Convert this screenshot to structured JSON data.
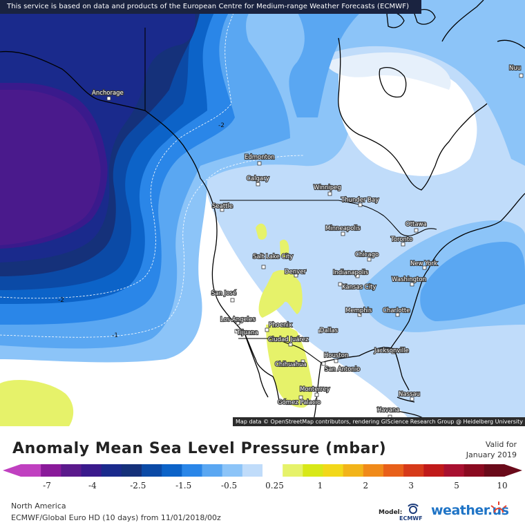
{
  "banner": "This service is based on data and products of the European Centre for Medium-range Weather Forecasts (ECMWF)",
  "attribution": "Map data © OpenStreetMap contributors, rendering GIScience Research Group @ Heidelberg University",
  "title": "Anomaly Mean Sea Level Pressure (mbar)",
  "valid_line1": "Valid for",
  "valid_line2": "January 2019",
  "region": "North America",
  "model_run": "ECMWF/Global Euro HD (10 days) from 11/01/2018/00z",
  "model_label": "Model:",
  "model_logo_text": "ECMWF",
  "brand": "weather.us",
  "colorbar": {
    "colors": [
      "#c040c0",
      "#8a1a9a",
      "#5b1a8c",
      "#3a1a8c",
      "#1a2a8c",
      "#15317a",
      "#0b4aa6",
      "#0c63c8",
      "#2a86e8",
      "#5aa7f2",
      "#8cc4f8",
      "#c0dcfa",
      "#ffffff",
      "#e6f26a",
      "#d8e818",
      "#f2d81a",
      "#f2b41a",
      "#f08a1a",
      "#e8601a",
      "#d63a1a",
      "#c01a1a",
      "#a81030",
      "#8a0a20",
      "#6a0a1a"
    ],
    "ticks": [
      "-7",
      "-4",
      "-2.5",
      "-1.5",
      "-0.5",
      "0.25",
      "1",
      "2",
      "3",
      "5",
      "10"
    ]
  },
  "isobar_labels": [
    "-2",
    "-2",
    "-1"
  ],
  "cities": [
    {
      "name": "Anchorage"
    },
    {
      "name": "Edmonton"
    },
    {
      "name": "Calgary"
    },
    {
      "name": "Winnipeg"
    },
    {
      "name": "Thunder Bay"
    },
    {
      "name": "Seattle"
    },
    {
      "name": "Minneapolis"
    },
    {
      "name": "Ottawa"
    },
    {
      "name": "Toronto"
    },
    {
      "name": "Salt Lake City"
    },
    {
      "name": "Denver"
    },
    {
      "name": "Chicago"
    },
    {
      "name": "New York"
    },
    {
      "name": "Indianapolis"
    },
    {
      "name": "Kansas City"
    },
    {
      "name": "Washington"
    },
    {
      "name": "San José"
    },
    {
      "name": "Memphis"
    },
    {
      "name": "Charlotte"
    },
    {
      "name": "Los Angeles"
    },
    {
      "name": "Phoenix"
    },
    {
      "name": "Dallas"
    },
    {
      "name": "Tijuana"
    },
    {
      "name": "Ciudad Juárez"
    },
    {
      "name": "Jacksonville"
    },
    {
      "name": "Houston"
    },
    {
      "name": "Chihuahua"
    },
    {
      "name": "San Antonio"
    },
    {
      "name": "Monterrey"
    },
    {
      "name": "Gómez Palacio"
    },
    {
      "name": "Nassau"
    },
    {
      "name": "Havana"
    },
    {
      "name": "Nuu"
    }
  ]
}
